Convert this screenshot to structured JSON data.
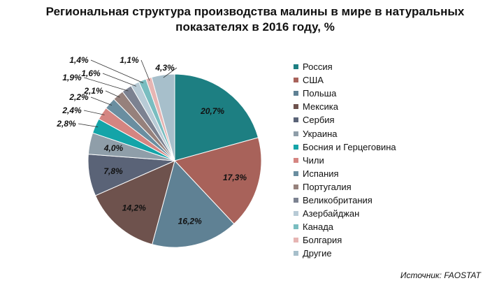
{
  "chart_data": {
    "type": "pie",
    "title": "Региональная структура производства малины в мире в натуральных показателях в 2016 году, %",
    "legend_position": "right",
    "categories": [
      "Россия",
      "США",
      "Польша",
      "Мексика",
      "Сербия",
      "Украина",
      "Босния и Герцеговина",
      "Чили",
      "Испания",
      "Португалия",
      "Великобритания",
      "Азербайджан",
      "Канада",
      "Болгария",
      "Другие"
    ],
    "values": [
      20.7,
      17.3,
      16.2,
      14.2,
      7.8,
      4.0,
      2.8,
      2.4,
      2.2,
      2.1,
      1.9,
      1.6,
      1.4,
      1.1,
      4.3
    ],
    "labels": [
      "20,7%",
      "17,3%",
      "16,2%",
      "14,2%",
      "7,8%",
      "4,0%",
      "2,8%",
      "2,4%",
      "2,2%",
      "2,1%",
      "1,9%",
      "1,6%",
      "1,4%",
      "1,1%",
      "4,3%"
    ],
    "colors": [
      "#1d7f82",
      "#a8625a",
      "#5f8194",
      "#6e524d",
      "#5a6377",
      "#8f9ea9",
      "#14a4a8",
      "#d58581",
      "#6a8ea0",
      "#96817c",
      "#7c8291",
      "#b8cbd6",
      "#79bdc0",
      "#e6b5b3",
      "#a7bfcb"
    ]
  },
  "source": "Источник: FAOSTAT"
}
